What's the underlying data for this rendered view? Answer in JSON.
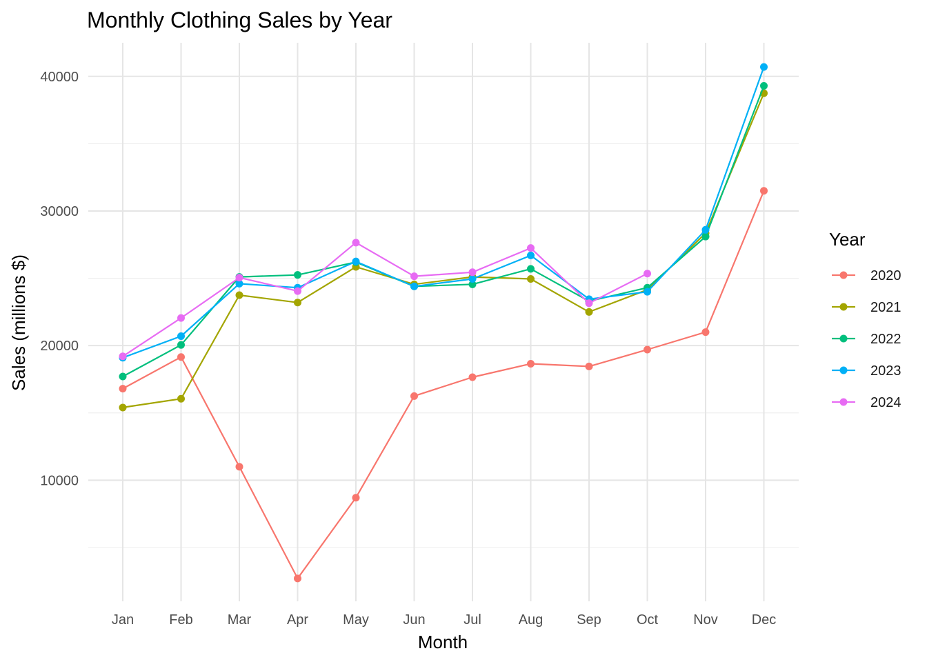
{
  "chart_data": {
    "type": "line",
    "title": "Monthly Clothing Sales by Year",
    "xlabel": "Month",
    "ylabel": "Sales (millions $)",
    "categories": [
      "Jan",
      "Feb",
      "Mar",
      "Apr",
      "May",
      "Jun",
      "Jul",
      "Aug",
      "Sep",
      "Oct",
      "Nov",
      "Dec"
    ],
    "ylim": [
      1000,
      42500
    ],
    "yticks": [
      10000,
      20000,
      30000,
      40000
    ],
    "grid": true,
    "legend_title": "Year",
    "legend_position": "right",
    "series": [
      {
        "name": "2020",
        "color": "#F8766D",
        "values": [
          16800,
          19150,
          11000,
          2700,
          8700,
          16250,
          17650,
          18650,
          18450,
          19700,
          21000,
          31500
        ]
      },
      {
        "name": "2021",
        "color": "#A3A500",
        "values": [
          15400,
          16050,
          23750,
          23200,
          25850,
          24550,
          25100,
          24950,
          22500,
          24150,
          28350,
          38750
        ]
      },
      {
        "name": "2022",
        "color": "#00BF7D",
        "values": [
          17700,
          20050,
          25100,
          25250,
          26200,
          24400,
          24550,
          25700,
          23300,
          24300,
          28100,
          39300
        ]
      },
      {
        "name": "2023",
        "color": "#00B0F6",
        "values": [
          19100,
          20700,
          24600,
          24300,
          26250,
          24400,
          24950,
          26700,
          23450,
          24000,
          28600,
          40700
        ]
      },
      {
        "name": "2024",
        "color": "#E76BF3",
        "values": [
          19200,
          22050,
          25050,
          24050,
          27650,
          25150,
          25450,
          27250,
          23150,
          25350,
          null,
          null
        ]
      }
    ]
  }
}
